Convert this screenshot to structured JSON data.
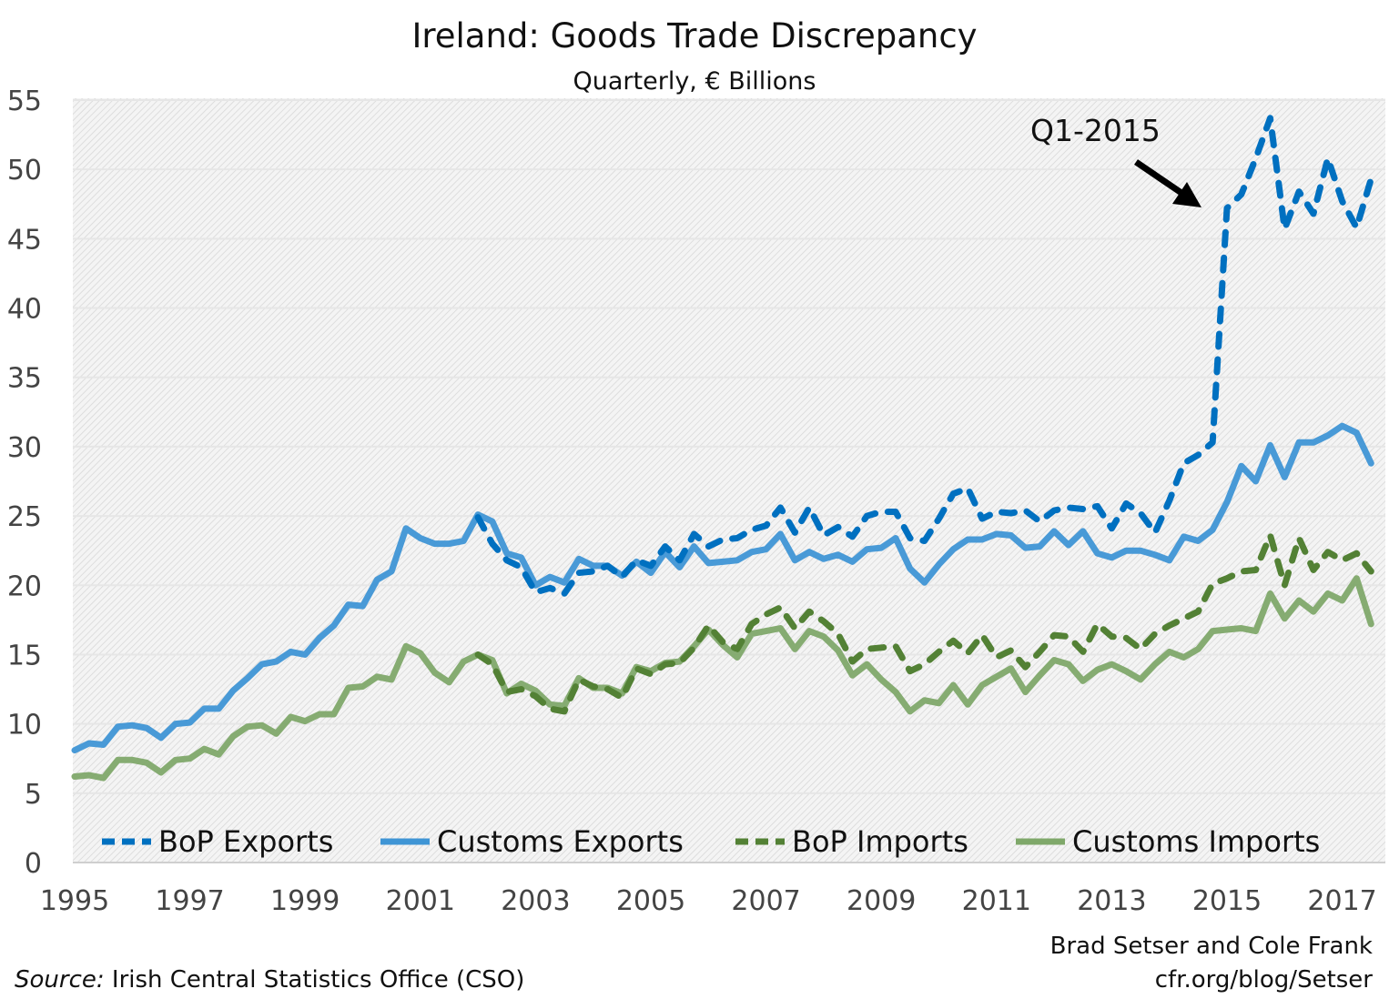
{
  "chart_data": {
    "type": "line",
    "title": "Ireland: Goods Trade Discrepancy",
    "subtitle": "Quarterly, € Billions",
    "xlabel": "",
    "ylabel": "",
    "ylim": [
      0,
      55
    ],
    "yticks": [
      0,
      5,
      10,
      15,
      20,
      25,
      30,
      35,
      40,
      45,
      50,
      55
    ],
    "xticks": [
      "1995",
      "1997",
      "1999",
      "2001",
      "2003",
      "2005",
      "2007",
      "2009",
      "2011",
      "2013",
      "2015",
      "2017"
    ],
    "x_start": "1995-Q1",
    "x_end": "2017-Q3",
    "grid": true,
    "legend_position": "bottom-inside",
    "annotation": {
      "text": "Q1-2015",
      "points_to": "2015-Q1"
    },
    "series": [
      {
        "name": "BoP Exports",
        "start": "2002-Q1",
        "color": "#0070C0",
        "style": "dashed",
        "values": [
          24.9,
          23.0,
          21.8,
          21.3,
          19.5,
          19.8,
          19.4,
          20.9,
          21.0,
          21.4,
          20.6,
          21.8,
          21.4,
          22.8,
          21.8,
          23.7,
          22.8,
          23.3,
          23.4,
          24.0,
          24.3,
          25.6,
          23.8,
          25.6,
          23.6,
          24.2,
          23.5,
          25.0,
          25.3,
          25.3,
          23.4,
          23.2,
          24.8,
          26.6,
          27.0,
          24.8,
          25.3,
          25.2,
          25.4,
          24.6,
          25.4,
          25.6,
          25.5,
          25.7,
          24.1,
          25.9,
          25.2,
          23.8,
          26.1,
          28.8,
          29.4,
          30.3,
          47.2,
          48.2,
          50.8,
          53.7,
          45.7,
          48.4,
          46.8,
          50.8,
          47.7,
          45.8,
          49.3
        ]
      },
      {
        "name": "Customs Exports",
        "start": "1995-Q1",
        "color": "#3F95D5",
        "style": "solid",
        "values": [
          8.1,
          8.6,
          8.5,
          9.8,
          9.9,
          9.7,
          9.0,
          10.0,
          10.1,
          11.1,
          11.1,
          12.4,
          13.3,
          14.3,
          14.5,
          15.2,
          15.0,
          16.2,
          17.1,
          18.6,
          18.5,
          20.4,
          21.0,
          24.1,
          23.4,
          23.0,
          23.0,
          23.2,
          25.1,
          24.6,
          22.3,
          22.0,
          20.0,
          20.6,
          20.2,
          21.9,
          21.4,
          21.4,
          20.7,
          21.7,
          20.9,
          22.4,
          21.3,
          22.8,
          21.6,
          21.7,
          21.8,
          22.4,
          22.6,
          23.7,
          21.8,
          22.4,
          21.9,
          22.2,
          21.7,
          22.6,
          22.7,
          23.4,
          21.2,
          20.2,
          21.5,
          22.6,
          23.3,
          23.3,
          23.7,
          23.6,
          22.7,
          22.8,
          23.9,
          22.9,
          23.9,
          22.3,
          22.0,
          22.5,
          22.5,
          22.2,
          21.8,
          23.5,
          23.2,
          24.0,
          26.0,
          28.6,
          27.5,
          30.1,
          27.8,
          30.3,
          30.3,
          30.8,
          31.5,
          31.0,
          28.8
        ]
      },
      {
        "name": "BoP Imports",
        "start": "2002-Q1",
        "color": "#538135",
        "style": "dashed",
        "values": [
          15.0,
          14.3,
          12.3,
          12.5,
          12.0,
          11.1,
          10.9,
          13.2,
          12.7,
          12.5,
          11.9,
          14.0,
          13.6,
          14.3,
          14.4,
          15.5,
          17.1,
          15.9,
          15.4,
          17.2,
          17.9,
          18.4,
          16.9,
          18.1,
          17.4,
          16.5,
          14.5,
          15.4,
          15.5,
          15.6,
          13.8,
          14.3,
          15.2,
          16.0,
          15.1,
          16.4,
          14.8,
          15.3,
          14.1,
          15.2,
          16.4,
          16.3,
          15.2,
          17.2,
          16.3,
          16.2,
          15.4,
          16.5,
          17.1,
          17.6,
          18.1,
          20.1,
          20.5,
          21.0,
          21.1,
          23.6,
          20.0,
          23.4,
          21.1,
          22.4,
          21.8,
          22.3,
          21.0
        ]
      },
      {
        "name": "Customs Imports",
        "start": "1995-Q1",
        "color": "#7FA86A",
        "style": "solid",
        "values": [
          6.2,
          6.3,
          6.1,
          7.4,
          7.4,
          7.2,
          6.5,
          7.4,
          7.5,
          8.2,
          7.8,
          9.1,
          9.8,
          9.9,
          9.3,
          10.5,
          10.2,
          10.7,
          10.7,
          12.6,
          12.7,
          13.4,
          13.2,
          15.6,
          15.1,
          13.7,
          13.0,
          14.5,
          15.0,
          14.6,
          12.2,
          12.9,
          12.4,
          11.4,
          11.3,
          13.3,
          12.6,
          12.6,
          12.2,
          14.1,
          13.8,
          14.4,
          14.5,
          15.6,
          16.8,
          15.7,
          14.8,
          16.5,
          16.7,
          16.9,
          15.4,
          16.7,
          16.3,
          15.3,
          13.5,
          14.3,
          13.2,
          12.3,
          10.9,
          11.7,
          11.5,
          12.8,
          11.4,
          12.8,
          13.4,
          14.0,
          12.3,
          13.5,
          14.6,
          14.3,
          13.1,
          13.9,
          14.3,
          13.8,
          13.2,
          14.3,
          15.2,
          14.8,
          15.4,
          16.7,
          16.8,
          16.9,
          16.7,
          19.4,
          17.6,
          18.9,
          18.1,
          19.4,
          18.9,
          20.5,
          17.2
        ]
      }
    ]
  },
  "credit": {
    "line1": "Brad Setser and Cole Frank",
    "line2": "cfr.org/blog/Setser"
  },
  "source": {
    "label": "Source:",
    "text": " Irish Central Statistics Office (CSO)"
  }
}
